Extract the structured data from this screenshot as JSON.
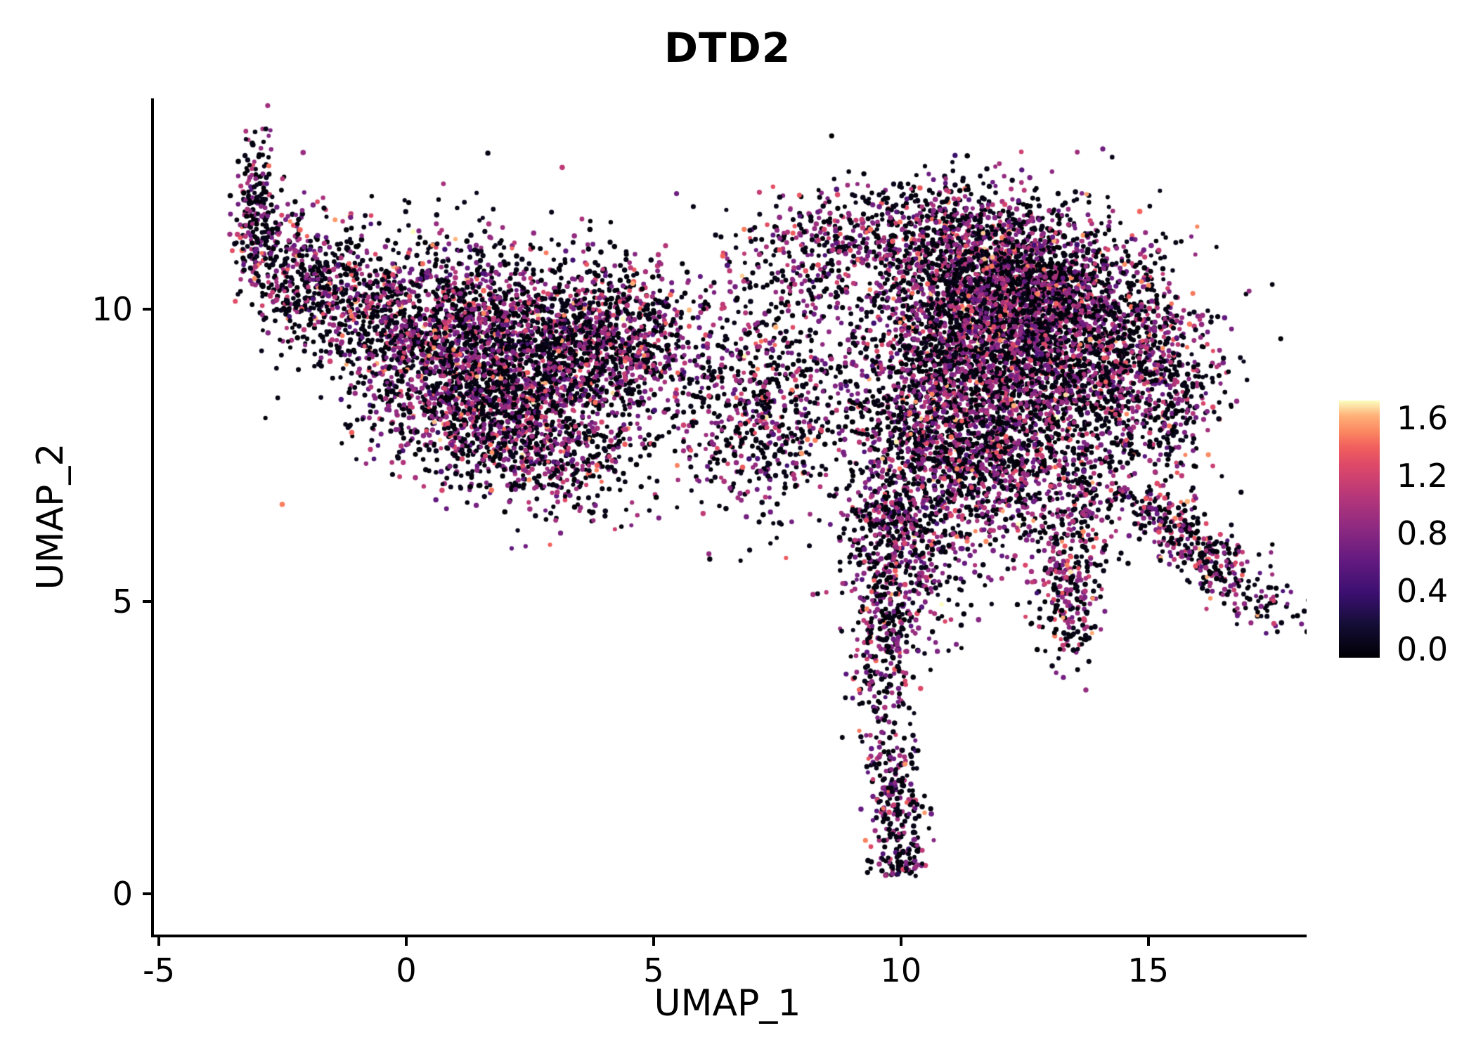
{
  "chart_data": {
    "type": "scatter",
    "title": "DTD2",
    "xlabel": "UMAP_1",
    "ylabel": "UMAP_2",
    "x_range": [
      -5.1,
      18.2
    ],
    "y_range": [
      -0.7,
      13.6
    ],
    "x_ticks": [
      "-5",
      "0",
      "5",
      "10",
      "15"
    ],
    "x_tick_values": [
      -5,
      0,
      5,
      10,
      15
    ],
    "y_ticks": [
      "0",
      "5",
      "10"
    ],
    "y_tick_values": [
      0,
      5,
      10
    ],
    "grid": false,
    "legend_position": "right",
    "point_radius": 3.4,
    "seed": 42,
    "color_range": [
      0,
      1.6
    ],
    "colorbar": {
      "min_display": -0.06,
      "max_display": 1.72,
      "ticks": [
        {
          "label": "1.6",
          "value": 1.6
        },
        {
          "label": "1.2",
          "value": 1.2
        },
        {
          "label": "0.8",
          "value": 0.8
        },
        {
          "label": "0.4",
          "value": 0.4
        },
        {
          "label": "0.0",
          "value": 0.0
        }
      ]
    },
    "colormap": {
      "name": "magma",
      "stops": [
        {
          "t": 0.0,
          "color": "#000004"
        },
        {
          "t": 0.13,
          "color": "#140e36"
        },
        {
          "t": 0.25,
          "color": "#3b0f70"
        },
        {
          "t": 0.38,
          "color": "#641a80"
        },
        {
          "t": 0.5,
          "color": "#8c2981"
        },
        {
          "t": 0.63,
          "color": "#b73779"
        },
        {
          "t": 0.75,
          "color": "#de4968"
        },
        {
          "t": 0.82,
          "color": "#f1605d"
        },
        {
          "t": 0.88,
          "color": "#fb8861"
        },
        {
          "t": 0.94,
          "color": "#feb078"
        },
        {
          "t": 1.0,
          "color": "#fcfdbf"
        }
      ]
    },
    "value_mixture": [
      {
        "dist": "uniform",
        "weight": 0.55,
        "min": 0.0,
        "max": 0.1
      },
      {
        "dist": "gauss",
        "weight": 0.32,
        "mean": 0.78,
        "sd": 0.14
      },
      {
        "dist": "gauss",
        "weight": 0.09,
        "mean": 1.05,
        "sd": 0.15
      },
      {
        "dist": "gauss",
        "weight": 0.04,
        "mean": 1.3,
        "sd": 0.15
      }
    ],
    "clusters": [
      {
        "cx": -3.05,
        "cy": 11.6,
        "sx": 0.22,
        "sy": 0.65,
        "n": 220
      },
      {
        "cx": -2.2,
        "cy": 10.6,
        "sx": 0.55,
        "sy": 0.6,
        "n": 300
      },
      {
        "cx": -1.2,
        "cy": 10.2,
        "sx": 0.8,
        "sy": 0.6,
        "n": 350
      },
      {
        "cx": 0.8,
        "cy": 9.4,
        "sx": 1.1,
        "sy": 0.85,
        "n": 1500
      },
      {
        "cx": 2.8,
        "cy": 9.2,
        "sx": 1.1,
        "sy": 0.8,
        "n": 1300
      },
      {
        "cx": 4.3,
        "cy": 9.6,
        "sx": 0.8,
        "sy": 0.6,
        "n": 500
      },
      {
        "cx": 1.8,
        "cy": 7.9,
        "sx": 1.0,
        "sy": 0.55,
        "n": 500
      },
      {
        "cx": 3.3,
        "cy": 7.3,
        "sx": 0.7,
        "sy": 0.5,
        "n": 250
      },
      {
        "cx": 5.6,
        "cy": 8.6,
        "sx": 0.9,
        "sy": 0.8,
        "n": 220
      },
      {
        "cx": 7.4,
        "cy": 8.2,
        "sx": 0.8,
        "sy": 0.9,
        "n": 550
      },
      {
        "cx": 7.6,
        "cy": 10.6,
        "sx": 0.9,
        "sy": 0.5,
        "n": 160
      },
      {
        "cx": 8.8,
        "cy": 11.2,
        "sx": 0.8,
        "sy": 0.5,
        "n": 200
      },
      {
        "cx": 10.7,
        "cy": 11.2,
        "sx": 1.0,
        "sy": 0.6,
        "n": 500
      },
      {
        "cx": 12.3,
        "cy": 10.4,
        "sx": 1.1,
        "sy": 0.75,
        "n": 1400
      },
      {
        "cx": 11.3,
        "cy": 9.2,
        "sx": 1.3,
        "sy": 1.0,
        "n": 1800
      },
      {
        "cx": 13.6,
        "cy": 9.3,
        "sx": 1.2,
        "sy": 0.9,
        "n": 1500
      },
      {
        "cx": 15.3,
        "cy": 8.6,
        "sx": 0.55,
        "sy": 0.8,
        "n": 350
      },
      {
        "cx": 12.4,
        "cy": 7.2,
        "sx": 1.2,
        "sy": 0.7,
        "n": 800
      },
      {
        "cx": 10.7,
        "cy": 7.8,
        "sx": 0.8,
        "sy": 0.7,
        "n": 500
      },
      {
        "cx": 13.4,
        "cy": 5.4,
        "sx": 0.35,
        "sy": 0.75,
        "n": 300
      },
      {
        "cx": 10.4,
        "cy": 5.9,
        "sx": 0.7,
        "sy": 0.8,
        "n": 300
      },
      {
        "cx": 16.0,
        "cy": 5.9,
        "sx": 1.05,
        "sy": 0.28,
        "angle": -33,
        "n": 420
      },
      {
        "cx": 9.65,
        "cy": 4.6,
        "sx": 0.32,
        "sy": 1.2,
        "n": 380
      },
      {
        "cx": 9.9,
        "cy": 1.3,
        "sx": 0.3,
        "sy": 0.75,
        "ymin": 0.3,
        "n": 260
      },
      {
        "cx": 9.8,
        "cy": 6.4,
        "sx": 0.55,
        "sy": 0.55,
        "n": 220
      }
    ]
  }
}
